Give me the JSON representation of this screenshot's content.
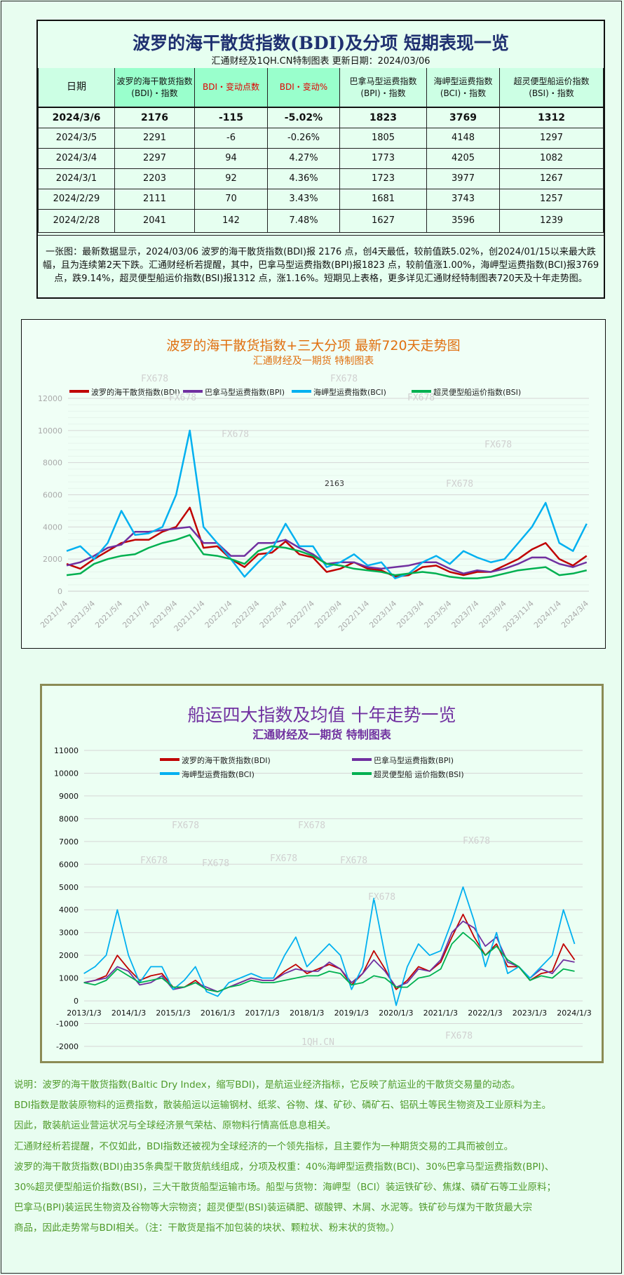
{
  "table_section": {
    "title": "波罗的海干散货指数(BDI)及分项 短期表现一览",
    "subtitle": "汇通财经及1QH.CN特制图表    更新日期：2024/03/06",
    "headers": [
      "日期",
      "波罗的海干散货指数(BDI)・指数",
      "BDI・变动点数",
      "BDI・变动%",
      "巴拿马型运费指数(BPI)・指数",
      "海岬型运费指数(BCI)・指数",
      "超灵便型船运价指数(BSI)・指数"
    ],
    "rows": [
      [
        "2024/3/6",
        "2176",
        "-115",
        "-5.02%",
        "1823",
        "3769",
        "1312"
      ],
      [
        "2024/3/5",
        "2291",
        "-6",
        "-0.26%",
        "1805",
        "4148",
        "1297"
      ],
      [
        "2024/3/4",
        "2297",
        "94",
        "4.27%",
        "1773",
        "4205",
        "1082"
      ],
      [
        "2024/3/1",
        "2203",
        "92",
        "4.36%",
        "1723",
        "3977",
        "1267"
      ],
      [
        "2024/2/29",
        "2111",
        "70",
        "3.43%",
        "1681",
        "3743",
        "1257"
      ],
      [
        "2024/2/28",
        "2041",
        "142",
        "7.48%",
        "1627",
        "3596",
        "1239"
      ]
    ],
    "description": "一张图：最新数据显示，2024/03/06 波罗的海干散货指数(BDI)报 2176 点，创4天最低，较前值跌5.02%，创2024/01/15以来最大跌幅，且为连续第2天下跌。汇通财经析若提醒，其中，巴拿马型运费指数(BPI)报1823 点，较前值涨1.00%，海岬型运费指数(BCI)报3769 点，跌9.14%，超灵便型船运价指数(BSI)报1312 点，涨1.16%。短期见上表格，更多详见汇通财经特制图表720天及十年走势图。"
  },
  "colors": {
    "BDI": "#c00000",
    "BPI": "#7030a0",
    "BCI": "#00b0f0",
    "BSI": "#00b050",
    "title_navy": "#1f3070",
    "chart1_title": "#e07010",
    "chart2_title": "#7030a0",
    "notes": "#4f9a2a"
  },
  "chart_data": [
    {
      "type": "line",
      "title": "波罗的海干散货指数+三大分项  最新720天走势图",
      "subtitle": "汇通财经及一期货  特制图表",
      "legend_position": "top",
      "grid": true,
      "ylim": [
        0,
        12000
      ],
      "yticks": [
        "0",
        "2000",
        "4000",
        "6000",
        "8000",
        "10000",
        "12000"
      ],
      "xticks": [
        "2021/1/4",
        "2021/3/4",
        "2021/5/4",
        "2021/7/4",
        "2021/9/4",
        "2021/11/4",
        "2022/1/4",
        "2022/3/4",
        "2022/5/4",
        "2022/7/4",
        "2022/9/4",
        "2022/11/4",
        "2023/1/4",
        "2023/3/4",
        "2023/5/4",
        "2023/7/4",
        "2023/9/4",
        "2023/11/4",
        "2024/1/4",
        "2024/3/4"
      ],
      "annotation": "2163",
      "watermarks": [
        "FX678",
        "FX678",
        "FX678",
        "FX678",
        "FX678",
        "FX678",
        "FX678"
      ],
      "x": [
        "2021/1",
        "2021/2",
        "2021/3",
        "2021/4",
        "2021/5",
        "2021/6",
        "2021/7",
        "2021/8",
        "2021/9",
        "2021/10",
        "2021/11",
        "2021/12",
        "2022/1",
        "2022/2",
        "2022/3",
        "2022/4",
        "2022/5",
        "2022/6",
        "2022/7",
        "2022/8",
        "2022/9",
        "2022/10",
        "2022/11",
        "2022/12",
        "2023/1",
        "2023/2",
        "2023/3",
        "2023/4",
        "2023/5",
        "2023/6",
        "2023/7",
        "2023/8",
        "2023/9",
        "2023/10",
        "2023/11",
        "2023/12",
        "2024/1",
        "2024/2",
        "2024/3"
      ],
      "series": [
        {
          "name": "波罗的海干散货指数(BDI)",
          "key": "BDI",
          "values": [
            1700,
            1400,
            2000,
            2500,
            3000,
            3200,
            3200,
            3700,
            4000,
            5200,
            2700,
            2800,
            2000,
            1500,
            2300,
            2400,
            3100,
            2300,
            2100,
            1200,
            1400,
            1800,
            1400,
            1300,
            900,
            1000,
            1500,
            1600,
            1200,
            1000,
            1200,
            1200,
            1600,
            2000,
            2600,
            3000,
            2000,
            1600,
            2200
          ]
        },
        {
          "name": "巴拿马型运费指数(BPI)",
          "key": "BPI",
          "values": [
            1600,
            1800,
            2200,
            2700,
            2900,
            3700,
            3700,
            3800,
            3900,
            4000,
            3000,
            3000,
            2200,
            2200,
            3000,
            3000,
            3200,
            2700,
            2300,
            1700,
            1800,
            1800,
            1500,
            1400,
            1500,
            1600,
            1800,
            1800,
            1400,
            1100,
            1300,
            1200,
            1400,
            1700,
            2100,
            2100,
            1700,
            1500,
            1800
          ]
        },
        {
          "name": "海岬型运费指数(BCI)",
          "key": "BCI",
          "values": [
            2500,
            2800,
            2000,
            3000,
            5000,
            3500,
            3600,
            4000,
            6000,
            10000,
            4000,
            3000,
            2000,
            900,
            1800,
            2600,
            4200,
            2800,
            2800,
            1500,
            1800,
            2300,
            1600,
            1800,
            800,
            1100,
            1800,
            2200,
            1700,
            2500,
            2100,
            1800,
            2000,
            3000,
            4000,
            5500,
            3000,
            2500,
            4200
          ]
        },
        {
          "name": "超灵便型船运价指数(BSI)",
          "key": "BSI",
          "values": [
            1000,
            1100,
            1700,
            2000,
            2200,
            2300,
            2700,
            3000,
            3200,
            3500,
            2300,
            2200,
            2000,
            1700,
            2500,
            2800,
            2700,
            2500,
            2200,
            1700,
            1600,
            1400,
            1300,
            1200,
            1000,
            1100,
            1200,
            1100,
            900,
            800,
            800,
            900,
            1100,
            1300,
            1400,
            1500,
            1000,
            1100,
            1300
          ]
        }
      ]
    },
    {
      "type": "line",
      "title": "船运四大指数及均值 十年走势一览",
      "subtitle": "汇通财经及一期货 特制图表",
      "legend_position": "top",
      "grid": true,
      "ylim": [
        -2000,
        11000
      ],
      "yticks": [
        "-2000",
        "-1000",
        "0",
        "1000",
        "2000",
        "3000",
        "4000",
        "5000",
        "6000",
        "7000",
        "8000",
        "9000",
        "10000",
        "11000"
      ],
      "xticks": [
        "2013/1/3",
        "2014/1/3",
        "2015/1/3",
        "2016/1/3",
        "2017/1/3",
        "2018/1/3",
        "2019/1/3",
        "2020/1/3",
        "2021/1/3",
        "2022/1/3",
        "2023/1/3",
        "2024/1/3"
      ],
      "watermarks": [
        "FX678",
        "FX678",
        "FX678",
        "FX678",
        "FX678",
        "FX678",
        "FX678",
        "FX678",
        "FX678",
        "1QH.CN"
      ],
      "x": [
        "2013/1",
        "2013/4",
        "2013/7",
        "2013/10",
        "2014/1",
        "2014/4",
        "2014/7",
        "2014/10",
        "2015/1",
        "2015/4",
        "2015/7",
        "2015/10",
        "2016/1",
        "2016/4",
        "2016/7",
        "2016/10",
        "2017/1",
        "2017/4",
        "2017/7",
        "2017/10",
        "2018/1",
        "2018/4",
        "2018/7",
        "2018/10",
        "2019/1",
        "2019/4",
        "2019/7",
        "2019/10",
        "2020/1",
        "2020/4",
        "2020/7",
        "2020/10",
        "2021/1",
        "2021/4",
        "2021/7",
        "2021/10",
        "2022/1",
        "2022/4",
        "2022/7",
        "2022/10",
        "2023/1",
        "2023/4",
        "2023/7",
        "2023/10",
        "2024/1"
      ],
      "series": [
        {
          "name": "波罗的海干散货指数(BDI)",
          "key": "BDI",
          "values": [
            800,
            900,
            1100,
            2000,
            1400,
            900,
            1100,
            1200,
            600,
            600,
            900,
            500,
            400,
            600,
            800,
            1000,
            900,
            900,
            1300,
            1600,
            1200,
            1400,
            1600,
            1400,
            700,
            1200,
            2200,
            1400,
            500,
            900,
            1500,
            1300,
            1700,
            2800,
            3800,
            2800,
            2000,
            2500,
            1500,
            1500,
            900,
            1200,
            1300,
            2500,
            1800
          ]
        },
        {
          "name": "巴拿马型运费指数(BPI)",
          "key": "BPI",
          "values": [
            800,
            900,
            1000,
            1500,
            1300,
            700,
            800,
            1100,
            500,
            600,
            800,
            600,
            400,
            600,
            800,
            1000,
            900,
            900,
            1200,
            1400,
            1300,
            1300,
            1700,
            1400,
            800,
            1200,
            1800,
            1300,
            600,
            800,
            1400,
            1300,
            1800,
            3000,
            3500,
            3200,
            2400,
            2800,
            1700,
            1500,
            1000,
            1400,
            1200,
            1800,
            1700
          ]
        },
        {
          "name": "海岬型运费指数(BCI)",
          "key": "BCI",
          "values": [
            1200,
            1500,
            2000,
            4000,
            2000,
            800,
            1500,
            1500,
            500,
            900,
            1500,
            400,
            200,
            800,
            1000,
            1200,
            1000,
            1000,
            2000,
            2800,
            1500,
            2000,
            2500,
            2000,
            500,
            1500,
            4500,
            2000,
            -200,
            1500,
            2500,
            2000,
            2200,
            3500,
            5000,
            3500,
            1500,
            3000,
            1200,
            1500,
            1000,
            1500,
            2000,
            4000,
            2500
          ]
        },
        {
          "name": "超灵便型船 运价指数(BSI)",
          "key": "BSI",
          "values": [
            800,
            700,
            900,
            1400,
            1100,
            800,
            900,
            1000,
            600,
            600,
            800,
            500,
            400,
            600,
            700,
            900,
            800,
            800,
            900,
            1000,
            1100,
            1100,
            1300,
            1200,
            700,
            800,
            1100,
            1000,
            600,
            600,
            1000,
            1100,
            1400,
            2500,
            3000,
            2600,
            2000,
            2400,
            1800,
            1500,
            900,
            1100,
            1000,
            1400,
            1300
          ]
        }
      ]
    }
  ],
  "notes": [
    "说明：波罗的海干散货指数(Baltic Dry Index，缩写BDI)，是航运业经济指标，它反映了航运业的干散货交易量的动态。",
    "BDI指数是散装原物料的运费指数，散装船运以运输钢材、纸浆、谷物、煤、矿砂、磷矿石、铝矾土等民生物资及工业原料为主。",
    "因此，散装航运业营运状况与全球经济景气荣枯、原物料行情高低息息相关。",
    "汇通财经析若提醒，不仅如此，BDI指数还被视为全球经济的一个领先指标，且主要作为一种期货交易的工具而被创立。",
    "波罗的海干散货指数(BDI)由35条典型干散货航线组成，分项及权重：40%海岬型运费指数(BCI)、30%巴拿马型运费指数(BPI)、",
    "30%超灵便型船运价指数(BSI)，三大干散货船型运输市场。船型与货物：海岬型（BCI）装运铁矿砂、焦煤、磷矿石等工业原料；",
    "巴拿马(BPI)装运民生物资及谷物等大宗物资；超灵便型(BSI)装运磷肥、碳酸钾、木屑、水泥等。铁矿砂与煤为干散货最大宗",
    "商品，因此走势常与BDI相关。（注：干散货是指不加包装的块状、颗粒状、粉末状的货物。）"
  ]
}
